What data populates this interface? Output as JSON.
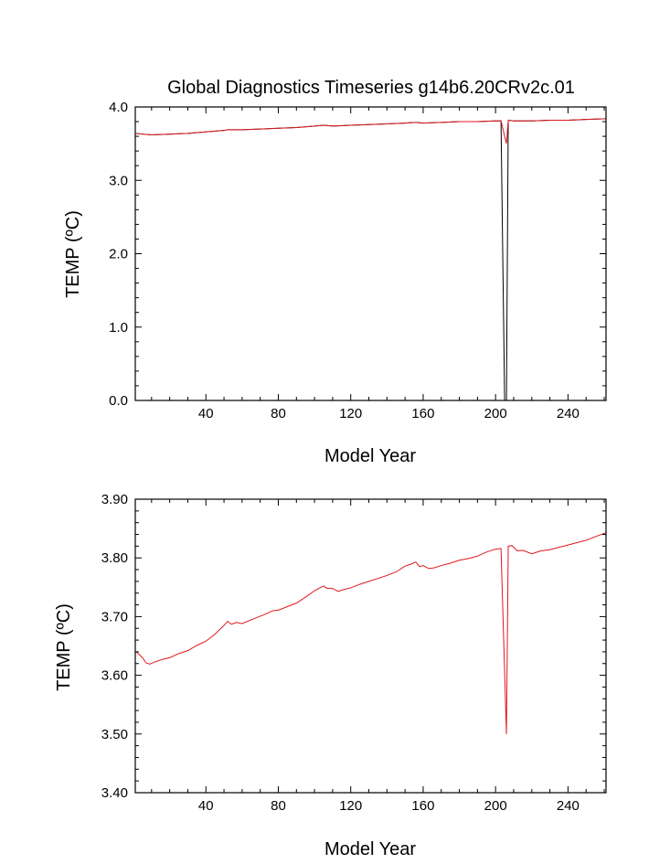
{
  "title": "Global Diagnostics Timeseries g14b6.20CRv2c.01",
  "colors": {
    "series_black": "#000000",
    "series_red": "#e0171c"
  },
  "chart_data": [
    {
      "type": "line",
      "xlabel": "Model Year",
      "ylabel": "TEMP (ºC)",
      "xlim": [
        1,
        261
      ],
      "ylim": [
        0.0,
        4.0
      ],
      "x_ticks": [
        40,
        80,
        120,
        160,
        200,
        240
      ],
      "x_tick_labels": [
        "40",
        "80",
        "120",
        "160",
        "200",
        "240"
      ],
      "y_ticks": [
        0.0,
        1.0,
        2.0,
        3.0,
        4.0
      ],
      "y_tick_labels": [
        "0.0",
        "1.0",
        "2.0",
        "3.0",
        "4.0"
      ],
      "grid": false,
      "series": [
        {
          "color": "#000000",
          "x": [
            1,
            5,
            10,
            20,
            30,
            40,
            50,
            52,
            55,
            60,
            70,
            80,
            90,
            100,
            105,
            110,
            120,
            130,
            140,
            150,
            156,
            160,
            170,
            180,
            190,
            200,
            203,
            205,
            206,
            207,
            210,
            215,
            220,
            230,
            240,
            250,
            261
          ],
          "y": [
            3.64,
            3.63,
            3.62,
            3.63,
            3.64,
            3.66,
            3.68,
            3.69,
            3.69,
            3.69,
            3.7,
            3.71,
            3.72,
            3.74,
            3.75,
            3.74,
            3.75,
            3.76,
            3.77,
            3.78,
            3.79,
            3.78,
            3.79,
            3.8,
            3.8,
            3.81,
            3.81,
            0.0,
            0.0,
            3.82,
            3.81,
            3.81,
            3.81,
            3.82,
            3.82,
            3.83,
            3.84
          ]
        },
        {
          "color": "#e0171c",
          "x": [
            1,
            5,
            10,
            20,
            30,
            40,
            50,
            52,
            55,
            60,
            70,
            80,
            90,
            100,
            105,
            110,
            120,
            130,
            140,
            150,
            156,
            160,
            170,
            180,
            190,
            200,
            203,
            206,
            207,
            210,
            215,
            220,
            230,
            240,
            250,
            261
          ],
          "y": [
            3.64,
            3.63,
            3.62,
            3.63,
            3.64,
            3.66,
            3.68,
            3.69,
            3.69,
            3.69,
            3.7,
            3.71,
            3.72,
            3.74,
            3.75,
            3.74,
            3.75,
            3.76,
            3.77,
            3.78,
            3.79,
            3.78,
            3.79,
            3.8,
            3.8,
            3.81,
            3.81,
            3.5,
            3.82,
            3.81,
            3.81,
            3.81,
            3.82,
            3.82,
            3.83,
            3.84
          ]
        }
      ]
    },
    {
      "type": "line",
      "xlabel": "Model Year",
      "ylabel": "TEMP (ºC)",
      "xlim": [
        1,
        261
      ],
      "ylim": [
        3.4,
        3.9
      ],
      "x_ticks": [
        40,
        80,
        120,
        160,
        200,
        240
      ],
      "x_tick_labels": [
        "40",
        "80",
        "120",
        "160",
        "200",
        "240"
      ],
      "y_ticks": [
        3.4,
        3.5,
        3.6,
        3.7,
        3.8,
        3.9
      ],
      "y_tick_labels": [
        "3.40",
        "3.50",
        "3.60",
        "3.70",
        "3.80",
        "3.90"
      ],
      "grid": false,
      "series": [
        {
          "color": "#e0171c",
          "x": [
            1,
            3,
            5,
            7,
            9,
            12,
            16,
            20,
            25,
            30,
            35,
            40,
            45,
            50,
            52,
            54,
            57,
            60,
            63,
            67,
            72,
            77,
            80,
            85,
            90,
            95,
            100,
            103,
            105,
            107,
            110,
            113,
            116,
            120,
            125,
            130,
            135,
            140,
            145,
            150,
            153,
            156,
            158,
            160,
            163,
            166,
            170,
            175,
            180,
            185,
            190,
            195,
            200,
            203,
            206,
            207,
            209,
            212,
            215,
            220,
            225,
            230,
            235,
            240,
            245,
            250,
            255,
            261
          ],
          "y": [
            3.641,
            3.636,
            3.63,
            3.621,
            3.619,
            3.623,
            3.627,
            3.63,
            3.637,
            3.642,
            3.651,
            3.658,
            3.67,
            3.685,
            3.692,
            3.687,
            3.69,
            3.688,
            3.692,
            3.697,
            3.703,
            3.71,
            3.711,
            3.717,
            3.723,
            3.733,
            3.744,
            3.749,
            3.752,
            3.748,
            3.748,
            3.743,
            3.746,
            3.749,
            3.755,
            3.76,
            3.765,
            3.77,
            3.776,
            3.786,
            3.789,
            3.793,
            3.785,
            3.787,
            3.782,
            3.783,
            3.787,
            3.791,
            3.796,
            3.799,
            3.803,
            3.81,
            3.815,
            3.816,
            3.5,
            3.82,
            3.821,
            3.812,
            3.813,
            3.807,
            3.812,
            3.814,
            3.818,
            3.822,
            3.826,
            3.83,
            3.836,
            3.843
          ]
        }
      ]
    }
  ]
}
